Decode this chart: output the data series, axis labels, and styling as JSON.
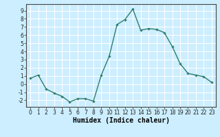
{
  "x": [
    0,
    1,
    2,
    3,
    4,
    5,
    6,
    7,
    8,
    9,
    10,
    11,
    12,
    13,
    14,
    15,
    16,
    17,
    18,
    19,
    20,
    21,
    22,
    23
  ],
  "y": [
    0.7,
    1.1,
    -0.6,
    -1.1,
    -1.5,
    -2.2,
    -1.8,
    -1.8,
    -2.1,
    1.1,
    3.4,
    7.3,
    7.9,
    9.2,
    6.6,
    6.8,
    6.7,
    6.3,
    4.6,
    2.5,
    1.3,
    1.1,
    0.9,
    0.2
  ],
  "line_color": "#2e7d6e",
  "marker": "D",
  "marker_size": 1.8,
  "linewidth": 1.0,
  "xlabel": "Humidex (Indice chaleur)",
  "xlim": [
    -0.5,
    23.5
  ],
  "ylim": [
    -2.8,
    9.8
  ],
  "yticks": [
    -2,
    -1,
    0,
    1,
    2,
    3,
    4,
    5,
    6,
    7,
    8,
    9
  ],
  "xticks": [
    0,
    1,
    2,
    3,
    4,
    5,
    6,
    7,
    8,
    9,
    10,
    11,
    12,
    13,
    14,
    15,
    16,
    17,
    18,
    19,
    20,
    21,
    22,
    23
  ],
  "bg_color": "#cceeff",
  "grid_color": "#ffffff",
  "tick_label_fontsize": 5.5,
  "xlabel_fontsize": 7.0,
  "xlabel_fontweight": "bold"
}
